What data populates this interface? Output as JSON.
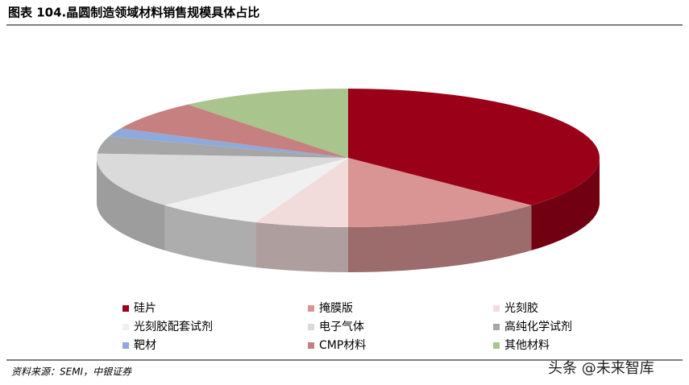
{
  "chart_data": {
    "type": "pie",
    "title": "图表 104.晶圆制造领域材料销售规模具体占比",
    "categories": [
      "硅片",
      "掩膜版",
      "光刻胶",
      "光刻胶配套试剂",
      "电子气体",
      "高纯化学试剂",
      "靶材",
      "CMP材料",
      "其他材料"
    ],
    "values": [
      37,
      13,
      6,
      7,
      13,
      4,
      2,
      7,
      11
    ],
    "colors": [
      "#9b0019",
      "#d99594",
      "#f2dcdb",
      "#f0f0f0",
      "#dadada",
      "#a6a6a6",
      "#8ea9db",
      "#c78080",
      "#a9c48c"
    ],
    "source": "资料来源：SEMI，中银证券",
    "watermark": "头条 @未来智库"
  }
}
